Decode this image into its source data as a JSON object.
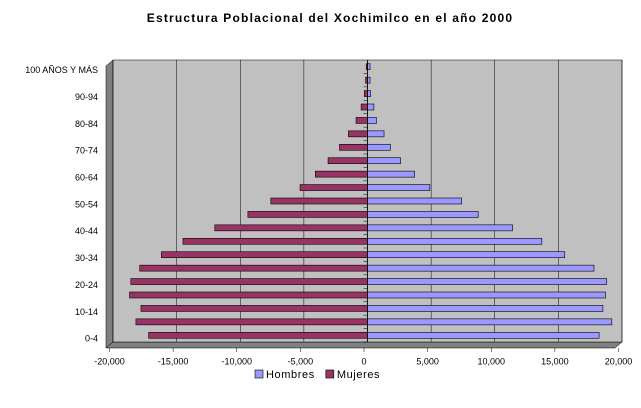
{
  "chart_data": {
    "type": "bar",
    "orientation": "horizontal",
    "stacked": true,
    "title": "Estructura Poblacional del Xochimilco en el año 2000",
    "categories": [
      "0-4",
      null,
      "10-14",
      null,
      "20-24",
      null,
      "30-34",
      null,
      "40-44",
      null,
      "50-54",
      null,
      "60-64",
      null,
      "70-74",
      null,
      "80-84",
      null,
      "90-94",
      null,
      "100 AÑOS Y MÁS"
    ],
    "series": [
      {
        "name": "Hombres",
        "color": "#9999ff",
        "values": [
          18200,
          19200,
          18500,
          18700,
          18800,
          17800,
          15500,
          13700,
          11400,
          8700,
          7400,
          4900,
          3700,
          2600,
          1800,
          1300,
          700,
          500,
          250,
          200,
          200
        ]
      },
      {
        "name": "Mujeres",
        "color": "#993366",
        "values": [
          -17200,
          -18200,
          -17800,
          -18700,
          -18600,
          -17900,
          -16200,
          -14500,
          -12000,
          -9400,
          -7600,
          -5300,
          -4100,
          -3100,
          -2200,
          -1500,
          -900,
          -500,
          -250,
          -150,
          -100
        ]
      }
    ],
    "xlim": [
      -20000,
      20000
    ],
    "xticks": [
      {
        "value": -20000,
        "label": "-20,000"
      },
      {
        "value": -15000,
        "label": "-15,000"
      },
      {
        "value": -10000,
        "label": "-10,000"
      },
      {
        "value": -5000,
        "label": "-5,000"
      },
      0,
      {
        "value": 5000,
        "label": "5,000"
      },
      {
        "value": 10000,
        "label": "10,000"
      },
      {
        "value": 15000,
        "label": "15,000"
      },
      {
        "value": 20000,
        "label": "20,000"
      }
    ],
    "grid": true,
    "legend": "bottom"
  }
}
